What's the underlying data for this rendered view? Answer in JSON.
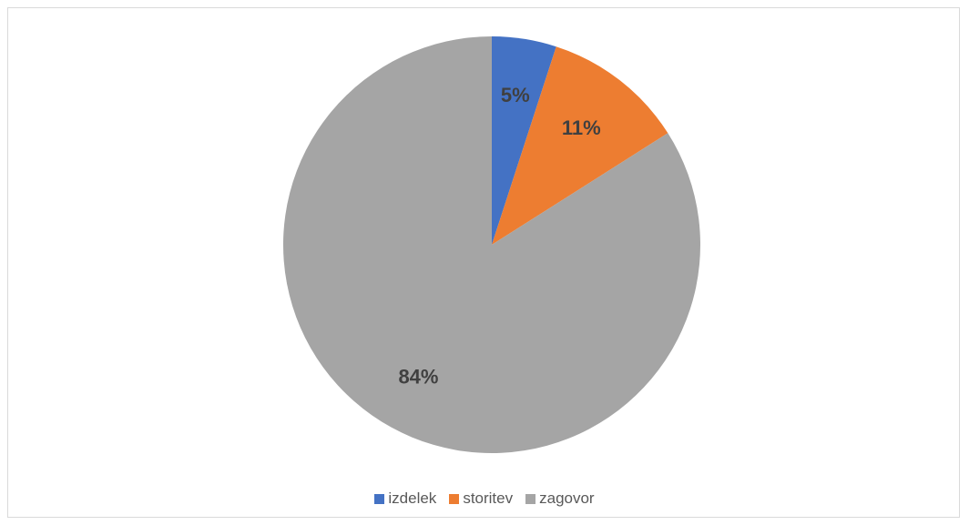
{
  "chart_data": {
    "type": "pie",
    "title": "",
    "categories": [
      "izdelek",
      "storitev",
      "zagovor"
    ],
    "values": [
      5,
      11,
      84
    ],
    "data_labels": [
      "5%",
      "11%",
      "84%"
    ],
    "colors": [
      "#4472C4",
      "#ED7D31",
      "#A5A5A5"
    ],
    "start_angle_deg": 0,
    "direction": "clockwise",
    "legend": "bottom"
  },
  "legend": {
    "items": [
      {
        "label": "izdelek",
        "color": "#4472C4"
      },
      {
        "label": "storitev",
        "color": "#ED7D31"
      },
      {
        "label": "zagovor",
        "color": "#A5A5A5"
      }
    ]
  }
}
